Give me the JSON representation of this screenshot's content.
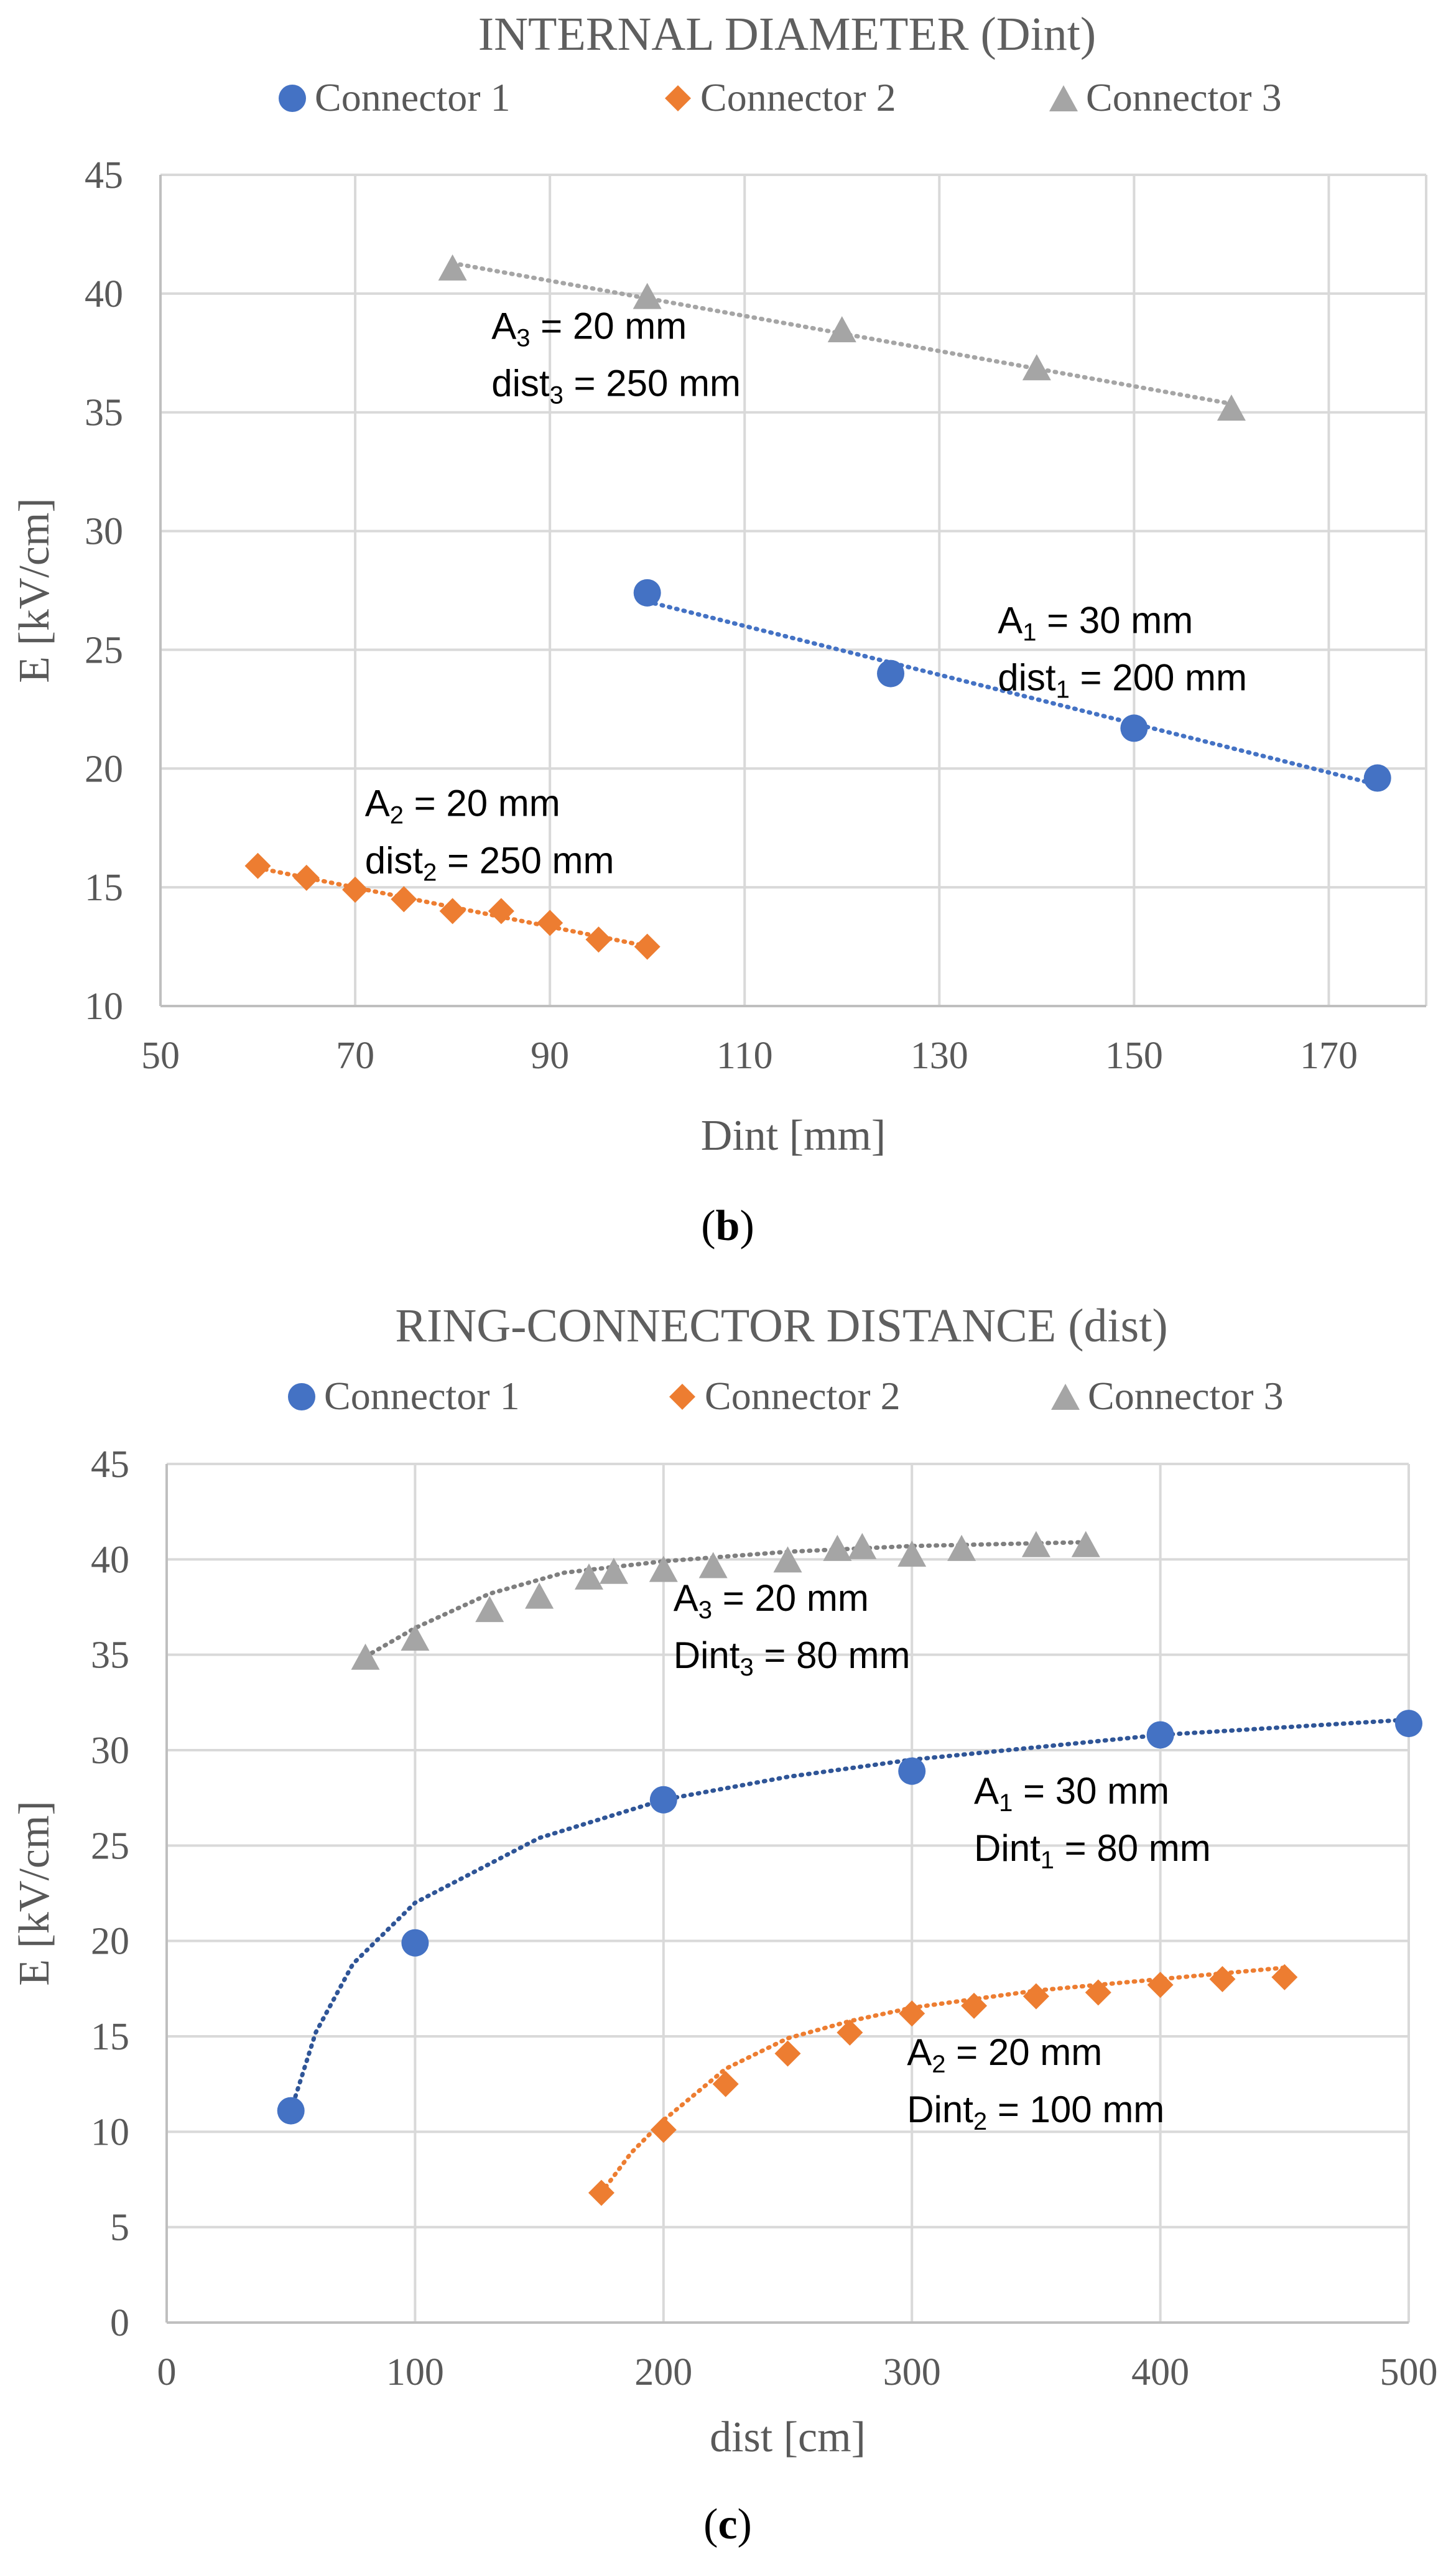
{
  "chart_data": [
    {
      "type": "scatter",
      "title": "INTERNAL DIAMETER (Dint)",
      "xlabel": "Dint [mm]",
      "ylabel": "E [kV/cm]",
      "xlim": [
        50,
        180
      ],
      "ylim": [
        10,
        45
      ],
      "xticks": [
        50,
        70,
        90,
        110,
        130,
        150,
        170
      ],
      "yticks": [
        10,
        15,
        20,
        25,
        30,
        35,
        40,
        45
      ],
      "grid": true,
      "legend_position": "top",
      "panel_label": "b",
      "series": [
        {
          "name": "Connector 1",
          "color": "#4472c4",
          "trend_color": "#4472c4",
          "marker": "circle",
          "x": [
            100,
            125,
            150,
            175
          ],
          "y": [
            27.4,
            24.0,
            21.7,
            19.6
          ],
          "trend": "linear",
          "annotation": {
            "a_base": "A",
            "a_sub": "1",
            "a_rest": " = 30 mm",
            "d_base": "dist",
            "d_sub": "1",
            "d_rest": " = 200 mm",
            "x": 136,
            "y": 25.7
          }
        },
        {
          "name": "Connector 2",
          "color": "#ed7d31",
          "trend_color": "#ed7d31",
          "marker": "diamond",
          "x": [
            60,
            65,
            70,
            75,
            80,
            85,
            90,
            95,
            100
          ],
          "y": [
            15.9,
            15.4,
            14.9,
            14.5,
            14.0,
            14.0,
            13.5,
            12.8,
            12.5
          ],
          "trend": "linear",
          "annotation": {
            "a_base": "A",
            "a_sub": "2",
            "a_rest": " = 20 mm",
            "d_base": "dist",
            "d_sub": "2",
            "d_rest": " = 250 mm",
            "x": 71,
            "y": 18.0
          }
        },
        {
          "name": "Connector 3",
          "color": "#a5a5a5",
          "trend_color": "#a5a5a5",
          "marker": "triangle",
          "x": [
            80,
            100,
            120,
            140,
            160
          ],
          "y": [
            41.1,
            39.9,
            38.5,
            36.9,
            35.2
          ],
          "trend": "linear",
          "annotation": {
            "a_base": "A",
            "a_sub": "3",
            "a_rest": " = 20 mm",
            "d_base": "dist",
            "d_sub": "3",
            "d_rest": " = 250 mm",
            "x": 84,
            "y": 38.1
          }
        }
      ]
    },
    {
      "type": "scatter",
      "title": "RING-CONNECTOR DISTANCE (dist)",
      "xlabel": "dist [cm]",
      "ylabel": "E [kV/cm]",
      "xlim": [
        0,
        500
      ],
      "ylim": [
        0,
        45
      ],
      "xticks": [
        0,
        100,
        200,
        300,
        400,
        500
      ],
      "yticks": [
        0,
        5,
        10,
        15,
        20,
        25,
        30,
        35,
        40,
        45
      ],
      "grid": true,
      "legend_position": "top",
      "panel_label": "c",
      "series": [
        {
          "name": "Connector 1",
          "color": "#4472c4",
          "trend_color": "#2f5597",
          "marker": "circle",
          "x": [
            50,
            100,
            200,
            300,
            400,
            500
          ],
          "y": [
            11.1,
            19.9,
            27.4,
            28.9,
            30.8,
            31.4
          ],
          "trend": "curve",
          "trend_points": [
            [
              50,
              11.1
            ],
            [
              60,
              15.2
            ],
            [
              75,
              18.8
            ],
            [
              100,
              22.0
            ],
            [
              150,
              25.4
            ],
            [
              200,
              27.4
            ],
            [
              250,
              28.6
            ],
            [
              300,
              29.5
            ],
            [
              400,
              30.8
            ],
            [
              500,
              31.6
            ]
          ],
          "annotation": {
            "a_base": "A",
            "a_sub": "1",
            "a_rest": " = 30 mm",
            "d_base": "Dint",
            "d_sub": "1",
            "d_rest": " = 80 mm",
            "x": 325,
            "y": 27.2
          }
        },
        {
          "name": "Connector 2",
          "color": "#ed7d31",
          "trend_color": "#ed7d31",
          "marker": "diamond",
          "x": [
            175,
            200,
            225,
            250,
            275,
            300,
            325,
            350,
            375,
            400,
            425,
            450
          ],
          "y": [
            6.8,
            10.1,
            12.5,
            14.1,
            15.2,
            16.2,
            16.6,
            17.1,
            17.3,
            17.7,
            18.0,
            18.1
          ],
          "trend": "curve",
          "trend_points": [
            [
              175,
              6.8
            ],
            [
              187,
              8.9
            ],
            [
              200,
              10.6
            ],
            [
              225,
              13.3
            ],
            [
              250,
              14.9
            ],
            [
              275,
              15.8
            ],
            [
              300,
              16.5
            ],
            [
              350,
              17.4
            ],
            [
              400,
              18.0
            ],
            [
              450,
              18.6
            ]
          ],
          "annotation": {
            "a_base": "A",
            "a_sub": "2",
            "a_rest": " = 20 mm",
            "d_base": "Dint",
            "d_sub": "2",
            "d_rest": " = 100 mm",
            "x": 298,
            "y": 13.5
          }
        },
        {
          "name": "Connector 3",
          "color": "#a5a5a5",
          "trend_color": "#7f7f7f",
          "marker": "triangle",
          "x": [
            80,
            100,
            130,
            150,
            170,
            180,
            200,
            220,
            250,
            270,
            280,
            300,
            320,
            350,
            370
          ],
          "y": [
            34.9,
            35.9,
            37.4,
            38.1,
            39.1,
            39.4,
            39.5,
            39.7,
            40.0,
            40.6,
            40.7,
            40.3,
            40.6,
            40.8,
            40.8
          ],
          "trend": "curve",
          "trend_points": [
            [
              80,
              34.9
            ],
            [
              100,
              36.4
            ],
            [
              130,
              38.2
            ],
            [
              160,
              39.3
            ],
            [
              200,
              39.9
            ],
            [
              250,
              40.4
            ],
            [
              300,
              40.7
            ],
            [
              370,
              40.9
            ]
          ],
          "annotation": {
            "a_base": "A",
            "a_sub": "3",
            "a_rest": " = 20 mm",
            "d_base": "Dint",
            "d_sub": "3",
            "d_rest": " = 80 mm",
            "x": 204,
            "y": 37.3
          }
        }
      ]
    }
  ]
}
